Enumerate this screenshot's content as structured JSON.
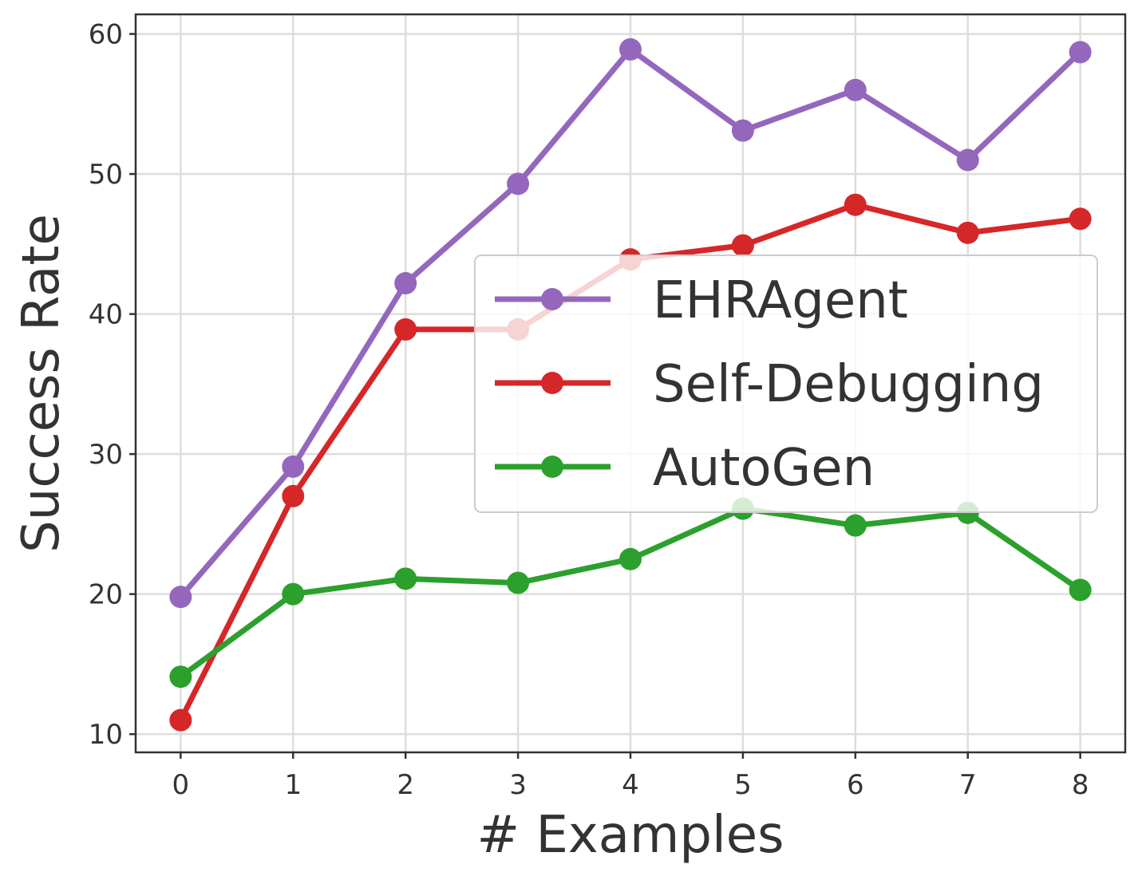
{
  "chart_data": {
    "type": "line",
    "xlabel": "# Examples",
    "ylabel": "Success Rate",
    "x": [
      0,
      1,
      2,
      3,
      4,
      5,
      6,
      7,
      8
    ],
    "xlim": [
      -0.4,
      8.4
    ],
    "ylim": [
      8.7,
      61.4
    ],
    "xticks": [
      "0",
      "1",
      "2",
      "3",
      "4",
      "5",
      "6",
      "7",
      "8"
    ],
    "yticks": [
      "10",
      "20",
      "30",
      "40",
      "50",
      "60"
    ],
    "grid": true,
    "legend_position": "center-right",
    "series": [
      {
        "name": "EHRAgent",
        "color": "#9467bd",
        "values": [
          19.8,
          29.1,
          42.2,
          49.3,
          58.9,
          53.1,
          56.0,
          51.0,
          58.7
        ]
      },
      {
        "name": "Self-Debugging",
        "color": "#d62728",
        "values": [
          11.0,
          27.0,
          38.9,
          38.9,
          43.9,
          44.9,
          47.8,
          45.8,
          46.8
        ]
      },
      {
        "name": "AutoGen",
        "color": "#2ca02c",
        "values": [
          14.1,
          20.0,
          21.1,
          20.8,
          22.5,
          26.1,
          24.9,
          25.8,
          20.3
        ]
      }
    ]
  }
}
